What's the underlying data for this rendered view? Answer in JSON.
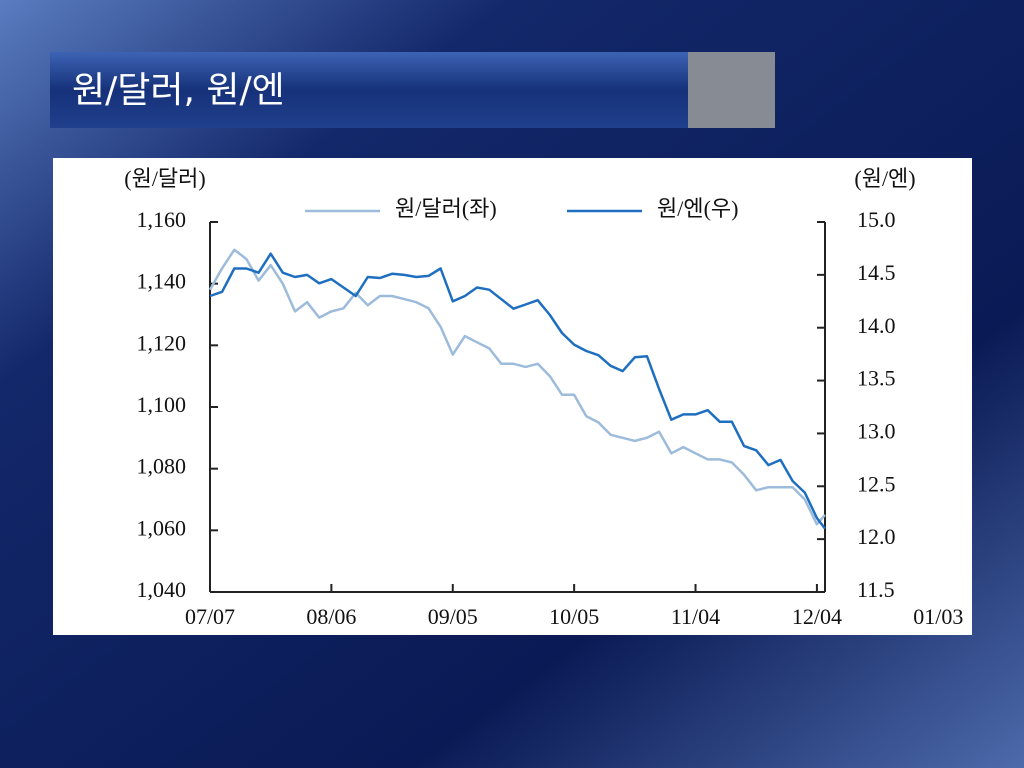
{
  "title": "원/달러, 원/엔",
  "chart_data": {
    "type": "line",
    "ylabel": "(원/달러)",
    "y2label": "(원/엔)",
    "x": [
      0,
      3,
      6,
      9,
      12,
      15,
      18,
      21,
      24,
      27,
      30,
      33,
      36,
      39,
      42,
      45,
      48,
      51,
      54,
      57,
      60,
      63,
      66,
      69,
      72,
      75,
      78,
      81,
      84,
      87,
      90,
      93,
      96,
      99,
      102,
      105,
      108,
      111,
      114,
      117,
      120,
      123,
      126,
      129,
      132,
      135,
      138,
      141,
      144,
      147,
      150,
      152
    ],
    "xlim": [
      0,
      152
    ],
    "xticks": [
      {
        "value": 0,
        "label": "07/07"
      },
      {
        "value": 30,
        "label": "08/06"
      },
      {
        "value": 60,
        "label": "09/05"
      },
      {
        "value": 90,
        "label": "10/05"
      },
      {
        "value": 120,
        "label": "11/04"
      },
      {
        "value": 150,
        "label": "12/04"
      },
      {
        "value": 180,
        "label": "01/03"
      }
    ],
    "ylim": [
      1040,
      1160
    ],
    "yticks": [
      {
        "value": 1040,
        "label": "1,040"
      },
      {
        "value": 1060,
        "label": "1,060"
      },
      {
        "value": 1080,
        "label": "1,080"
      },
      {
        "value": 1100,
        "label": "1,100"
      },
      {
        "value": 1120,
        "label": "1,120"
      },
      {
        "value": 1140,
        "label": "1,140"
      },
      {
        "value": 1160,
        "label": "1,160"
      }
    ],
    "y2lim": [
      11.5,
      15.0
    ],
    "y2ticks": [
      11.5,
      {
        "value": 12,
        "label": "12.0"
      },
      12.5,
      {
        "value": 13,
        "label": "13.0"
      },
      13.5,
      {
        "value": 14,
        "label": "14.0"
      },
      14.5,
      {
        "value": 15,
        "label": "15.0"
      }
    ],
    "legend": "top",
    "series": [
      {
        "name": "원/달러(좌)",
        "color": "#9dbbdb",
        "axis": "y",
        "values": [
          1138,
          1145,
          1151,
          1148,
          1141,
          1146,
          1140,
          1131,
          1134,
          1129,
          1131,
          1132,
          1137,
          1133,
          1136,
          1136,
          1135,
          1134,
          1132,
          1126,
          1117,
          1123,
          1121,
          1119,
          1114,
          1114,
          1113,
          1114,
          1110,
          1104,
          1104,
          1097,
          1095,
          1091,
          1090,
          1089,
          1090,
          1092,
          1085,
          1087,
          1085,
          1083,
          1083,
          1082,
          1078,
          1073,
          1074,
          1074,
          1074,
          1070,
          1062,
          1065
        ]
      },
      {
        "name": "원/엔(우)",
        "color": "#1f6fc0",
        "axis": "y2",
        "values": [
          14.3,
          14.34,
          14.56,
          14.56,
          14.52,
          14.7,
          14.52,
          14.48,
          14.5,
          14.42,
          14.46,
          14.38,
          14.3,
          14.48,
          14.47,
          14.51,
          14.5,
          14.48,
          14.49,
          14.56,
          14.25,
          14.3,
          14.38,
          14.36,
          14.27,
          14.18,
          14.22,
          14.26,
          14.12,
          13.95,
          13.84,
          13.78,
          13.74,
          13.64,
          13.59,
          13.72,
          13.73,
          13.42,
          13.13,
          13.18,
          13.18,
          13.22,
          13.11,
          13.11,
          12.88,
          12.84,
          12.7,
          12.75,
          12.55,
          12.44,
          12.2,
          12.1
        ]
      }
    ]
  }
}
